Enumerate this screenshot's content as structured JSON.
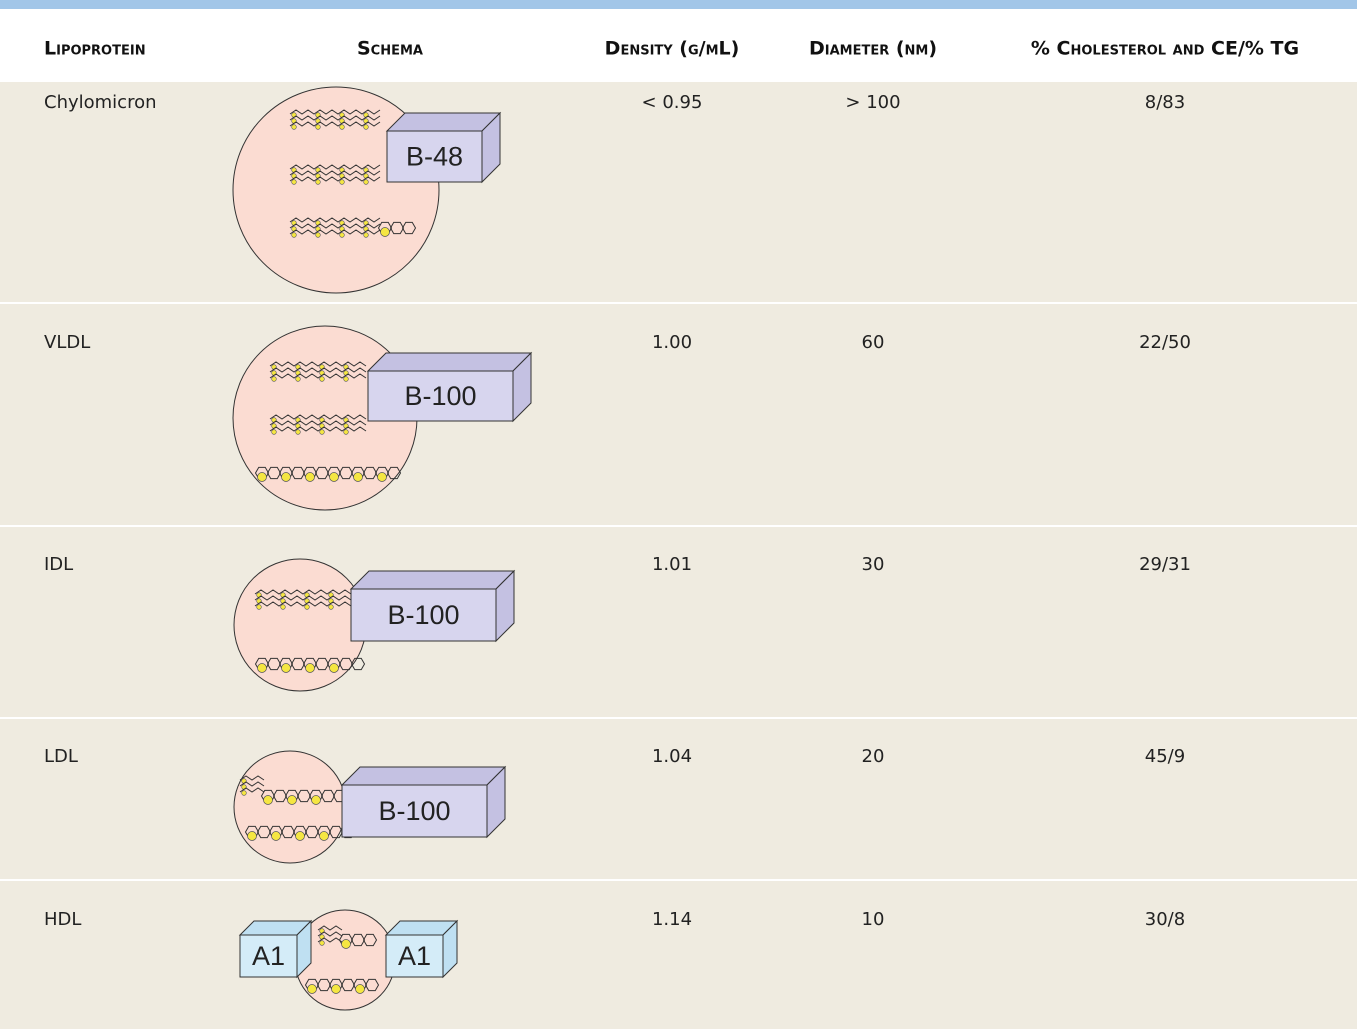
{
  "table": {
    "header": [
      "Lipoprotein",
      "Schema",
      "Density (g/mL)",
      "Diameter (nm)",
      "% Cholesterol and CE/% TG"
    ],
    "rows": [
      {
        "lipoprotein": "Chylomicron",
        "schema": [
          "B-48"
        ],
        "density": "< 0.95",
        "diameter": "> 100",
        "ratio": "8/83"
      },
      {
        "lipoprotein": "VLDL",
        "schema": [
          "B-100"
        ],
        "density": "1.00",
        "diameter": "60",
        "ratio": "22/50"
      },
      {
        "lipoprotein": "IDL",
        "schema": [
          "B-100"
        ],
        "density": "1.01",
        "diameter": "30",
        "ratio": "29/31"
      },
      {
        "lipoprotein": "LDL",
        "schema": [
          "B-100"
        ],
        "density": "1.04",
        "diameter": "20",
        "ratio": "45/9"
      },
      {
        "lipoprotein": "HDL",
        "schema": [
          "A1",
          "A1"
        ],
        "density": "1.14",
        "diameter": "10",
        "ratio": "30/8"
      }
    ]
  }
}
